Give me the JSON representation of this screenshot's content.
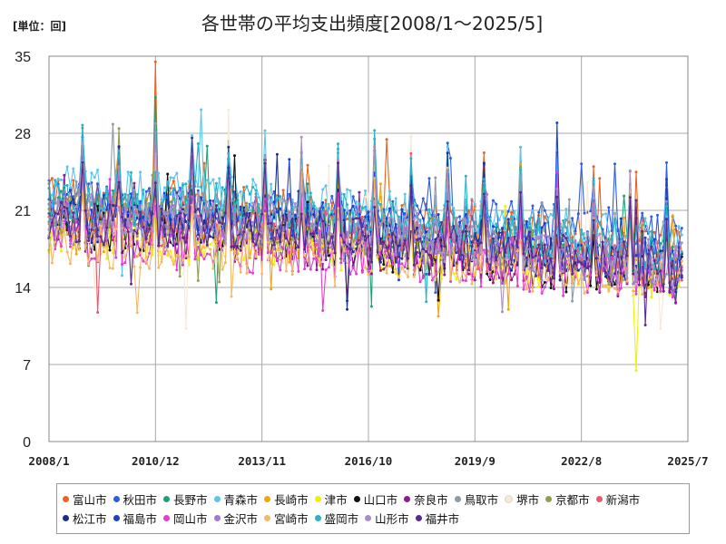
{
  "unit_label": "[単位：回]",
  "chart_data": {
    "type": "line",
    "title": "各世帯の平均支出頻度[2008/1～2025/5]",
    "ylim": [
      0,
      35
    ],
    "y_ticks": [
      "0",
      "7",
      "14",
      "21",
      "28",
      "35"
    ],
    "x_tick_labels": [
      "2008/1",
      "2010/12",
      "2013/11",
      "2016/10",
      "2019/9",
      "2022/8",
      "2025/7"
    ],
    "grid": true,
    "legend_position": "bottom",
    "series": [
      {
        "name": "富山市",
        "color": "#e8641f",
        "keypoints": [
          [
            0,
            22
          ],
          [
            48,
            21.5
          ],
          [
            96,
            20.5
          ],
          [
            144,
            19.5
          ],
          [
            192,
            18.5
          ],
          [
            208,
            18.5
          ]
        ]
      },
      {
        "name": "秋田市",
        "color": "#2e5de0",
        "keypoints": [
          [
            0,
            22
          ],
          [
            48,
            21
          ],
          [
            96,
            20.5
          ],
          [
            144,
            20
          ],
          [
            192,
            19
          ],
          [
            208,
            18.5
          ]
        ]
      },
      {
        "name": "長野市",
        "color": "#1aa37a",
        "keypoints": [
          [
            0,
            21
          ],
          [
            48,
            20.5
          ],
          [
            96,
            19
          ],
          [
            144,
            18
          ],
          [
            192,
            17
          ],
          [
            208,
            16.5
          ]
        ]
      },
      {
        "name": "青森市",
        "color": "#5cc6ea",
        "keypoints": [
          [
            0,
            23
          ],
          [
            48,
            22.5
          ],
          [
            96,
            21
          ],
          [
            144,
            20
          ],
          [
            192,
            18.5
          ],
          [
            208,
            18
          ]
        ]
      },
      {
        "name": "長崎市",
        "color": "#f2a50c",
        "keypoints": [
          [
            0,
            19
          ],
          [
            48,
            18.5
          ],
          [
            96,
            18
          ],
          [
            144,
            17
          ],
          [
            192,
            15.5
          ],
          [
            208,
            15
          ]
        ]
      },
      {
        "name": "津市",
        "color": "#eeee10",
        "keypoints": [
          [
            0,
            18.5
          ],
          [
            48,
            18
          ],
          [
            96,
            17.5
          ],
          [
            144,
            16.5
          ],
          [
            192,
            15
          ],
          [
            208,
            15
          ]
        ]
      },
      {
        "name": "山口市",
        "color": "#111111",
        "keypoints": [
          [
            0,
            19.5
          ],
          [
            48,
            19
          ],
          [
            96,
            18
          ],
          [
            144,
            16.5
          ],
          [
            192,
            15
          ],
          [
            208,
            15
          ]
        ]
      },
      {
        "name": "奈良市",
        "color": "#8e1c8e",
        "keypoints": [
          [
            0,
            19.5
          ],
          [
            48,
            18.5
          ],
          [
            96,
            17.5
          ],
          [
            144,
            16.5
          ],
          [
            192,
            15
          ],
          [
            208,
            14.5
          ]
        ]
      },
      {
        "name": "鳥取市",
        "color": "#8e9aa6",
        "keypoints": [
          [
            0,
            22
          ],
          [
            48,
            21
          ],
          [
            96,
            19.5
          ],
          [
            144,
            18
          ],
          [
            192,
            16.5
          ],
          [
            208,
            16
          ]
        ]
      },
      {
        "name": "堺市",
        "color": "#f5ead6",
        "keypoints": [
          [
            0,
            19
          ],
          [
            48,
            18.5
          ],
          [
            96,
            18
          ],
          [
            144,
            17
          ],
          [
            192,
            16
          ],
          [
            208,
            15.5
          ]
        ]
      },
      {
        "name": "京都市",
        "color": "#8f9f4f",
        "keypoints": [
          [
            0,
            21
          ],
          [
            48,
            20
          ],
          [
            96,
            19
          ],
          [
            144,
            18
          ],
          [
            192,
            16
          ],
          [
            208,
            15.5
          ]
        ]
      },
      {
        "name": "新潟市",
        "color": "#e85a6e",
        "keypoints": [
          [
            0,
            20
          ],
          [
            48,
            19.5
          ],
          [
            96,
            19
          ],
          [
            144,
            17.5
          ],
          [
            192,
            16.5
          ],
          [
            208,
            16
          ]
        ]
      },
      {
        "name": "松江市",
        "color": "#1a2e8a",
        "keypoints": [
          [
            0,
            20
          ],
          [
            48,
            19.5
          ],
          [
            96,
            18.5
          ],
          [
            144,
            17.5
          ],
          [
            192,
            16
          ],
          [
            208,
            15.5
          ]
        ]
      },
      {
        "name": "福島市",
        "color": "#1c3fd4",
        "keypoints": [
          [
            0,
            21
          ],
          [
            48,
            20.5
          ],
          [
            96,
            19.5
          ],
          [
            144,
            18.5
          ],
          [
            192,
            17
          ],
          [
            208,
            16.5
          ]
        ]
      },
      {
        "name": "岡山市",
        "color": "#e040d0",
        "keypoints": [
          [
            0,
            18.5
          ],
          [
            48,
            17.5
          ],
          [
            96,
            17
          ],
          [
            144,
            16
          ],
          [
            192,
            14.5
          ],
          [
            208,
            14.5
          ]
        ]
      },
      {
        "name": "金沢市",
        "color": "#a27ad6",
        "keypoints": [
          [
            0,
            20
          ],
          [
            48,
            19.5
          ],
          [
            96,
            18.5
          ],
          [
            144,
            17
          ],
          [
            192,
            16
          ],
          [
            208,
            15.5
          ]
        ]
      },
      {
        "name": "宮崎市",
        "color": "#f5b86a",
        "keypoints": [
          [
            0,
            18
          ],
          [
            48,
            17.5
          ],
          [
            96,
            17
          ],
          [
            144,
            16
          ],
          [
            192,
            15
          ],
          [
            208,
            15
          ]
        ]
      },
      {
        "name": "盛岡市",
        "color": "#28b3c8",
        "keypoints": [
          [
            0,
            22
          ],
          [
            48,
            21.5
          ],
          [
            96,
            20.5
          ],
          [
            144,
            19
          ],
          [
            192,
            17.5
          ],
          [
            208,
            17
          ]
        ]
      },
      {
        "name": "山形市",
        "color": "#a890c0",
        "keypoints": [
          [
            0,
            21
          ],
          [
            48,
            20.5
          ],
          [
            96,
            19.5
          ],
          [
            144,
            18
          ],
          [
            192,
            16.5
          ],
          [
            208,
            16
          ]
        ]
      },
      {
        "name": "福井市",
        "color": "#5a2a8c",
        "keypoints": [
          [
            0,
            20
          ],
          [
            48,
            19.5
          ],
          [
            96,
            18.5
          ],
          [
            144,
            17.5
          ],
          [
            192,
            16
          ],
          [
            208,
            15.5
          ]
        ]
      }
    ]
  }
}
